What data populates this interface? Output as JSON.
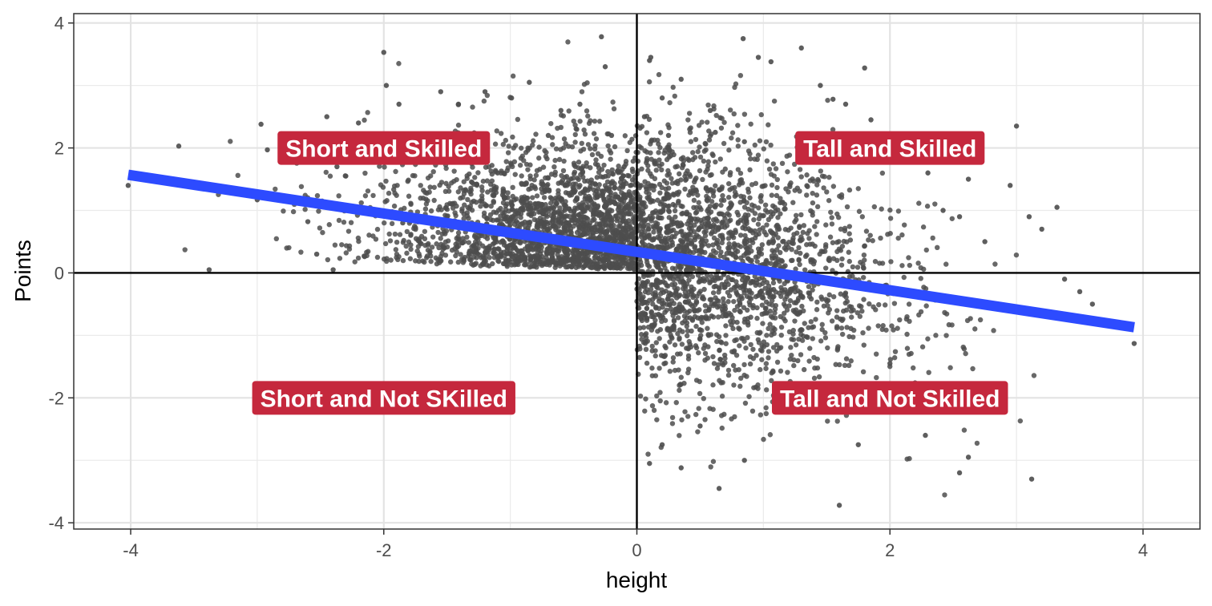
{
  "chart_data": {
    "type": "scatter",
    "title": "",
    "xlabel": "height",
    "ylabel": "Points",
    "xlim": [
      -4.45,
      4.45
    ],
    "ylim": [
      -4.1,
      4.15
    ],
    "x_ticks": [
      -4,
      -2,
      0,
      2,
      4
    ],
    "y_ticks": [
      -4,
      -2,
      0,
      2,
      4
    ],
    "x_tick_labels": [
      "-4",
      "-2",
      "0",
      "2",
      "4"
    ],
    "y_tick_labels": [
      "-4",
      "-2",
      "0",
      "2",
      "4"
    ],
    "grid": true,
    "reference_lines": {
      "x": 0,
      "y": 0
    },
    "regression_line": {
      "x": [
        -4.02,
        3.93
      ],
      "y": [
        1.57,
        -0.87
      ],
      "color": "#2d4bff"
    },
    "point_color": "#4d4d4d",
    "label_fill": "#c5283d",
    "quadrant_labels": [
      {
        "text": "Short and Skilled",
        "x": -2.0,
        "y": 2.0
      },
      {
        "text": "Tall and Skilled",
        "x": 2.0,
        "y": 2.0
      },
      {
        "text": "Short and Not SKilled",
        "x": -2.0,
        "y": -2.0
      },
      {
        "text": "Tall and Not Skilled",
        "x": 2.0,
        "y": -2.0
      }
    ],
    "series": [
      {
        "x": [
          -4.02,
          -3.62,
          -3.38,
          -3.0,
          -2.97,
          -2.92,
          -2.6,
          -2.53,
          -2.45,
          -2.4,
          -2.37,
          -2.3,
          -2.2,
          -2.0,
          -1.98,
          -1.88,
          -1.85,
          -1.55,
          -1.52,
          -1.41,
          -1.32,
          -1.2,
          -1.1,
          -0.99,
          -0.85,
          -0.7,
          -0.6,
          -0.45,
          -0.28,
          -0.27,
          -0.25,
          -0.2,
          -0.1,
          0.1,
          0.11,
          0.2,
          0.25,
          0.35,
          0.58,
          0.62,
          0.84,
          0.85,
          0.96,
          1.06,
          1.3,
          1.45,
          1.55,
          1.65,
          1.8,
          1.85,
          1.92,
          2.1,
          2.3,
          2.42,
          2.55,
          2.62,
          2.75,
          2.95,
          3.0,
          3.1,
          3.2,
          3.32,
          3.38,
          3.5,
          3.6,
          3.93,
          1.6,
          0.65,
          0.35,
          0.2,
          0.1,
          0.5,
          0.85,
          1.3,
          1.75,
          2.0,
          2.28,
          2.55,
          2.62,
          3.12,
          0.02,
          0.02,
          0.05,
          0.07,
          0.06
        ],
        "y": [
          1.4,
          2.03,
          0.05,
          1.17,
          2.38,
          1.97,
          0.82,
          0.3,
          2.5,
          0.05,
          1.7,
          1.55,
          2.4,
          3.53,
          3.0,
          2.7,
          0.8,
          2.9,
          0.4,
          2.7,
          1.3,
          2.9,
          1.6,
          2.8,
          3.05,
          2.2,
          2.6,
          2.7,
          3.78,
          0.2,
          3.3,
          2.2,
          1.7,
          3.4,
          3.45,
          2.8,
          2.2,
          3.1,
          2.6,
          2.25,
          3.75,
          2.1,
          3.45,
          3.38,
          3.6,
          3.0,
          2.78,
          2.7,
          3.28,
          2.45,
          2.2,
          2.0,
          1.6,
          1.0,
          0.9,
          1.5,
          0.5,
          1.4,
          2.35,
          0.9,
          0.7,
          1.05,
          -0.1,
          -0.3,
          -0.5,
          -1.13,
          -3.72,
          -3.45,
          -3.12,
          -2.75,
          -3.05,
          -2.45,
          -3.0,
          -2.0,
          -2.75,
          -1.45,
          -2.6,
          -3.2,
          -2.95,
          -3.3,
          0.4,
          -0.4,
          1.1,
          -1.1,
          2.5
        ]
      }
    ]
  }
}
